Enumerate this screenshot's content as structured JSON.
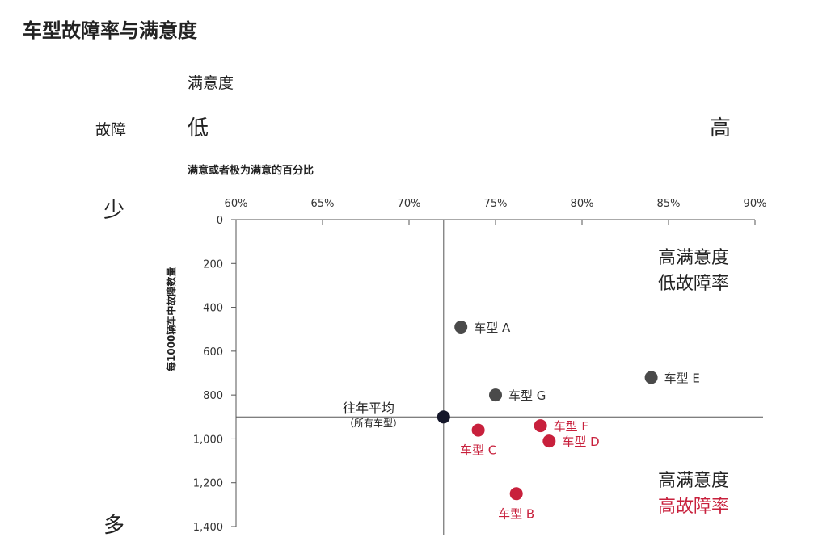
{
  "title": "车型故障率与满意度",
  "sat_header": "满意度",
  "failure_header": "故障",
  "low_label": "低",
  "high_label": "高",
  "few_label": "少",
  "many_label": "多",
  "quadrant_top": {
    "line1": "高满意度",
    "line2": "低故障率"
  },
  "quadrant_bottom": {
    "line1": "高满意度",
    "line2": "高故障率"
  },
  "average_label": {
    "line1": "往年平均",
    "line2": "（所有车型）"
  },
  "colors": {
    "gray": "#4a4a4a",
    "red": "#c8203c",
    "avg": "#15172a",
    "axis": "#555555"
  },
  "chart_data": {
    "type": "scatter",
    "xlabel": "满意或者极为满意的百分比",
    "ylabel": "每1000辆车中故障数量",
    "xlim": [
      60,
      90
    ],
    "ylim": [
      0,
      1400
    ],
    "y_inverted": true,
    "x_ticks": [
      "60%",
      "65%",
      "70%",
      "75%",
      "80%",
      "85%",
      "90%"
    ],
    "y_ticks": [
      "0",
      "200",
      "400",
      "600",
      "800",
      "1,000",
      "1,200",
      "1,400"
    ],
    "x_tick_values": [
      60,
      65,
      70,
      75,
      80,
      85,
      90
    ],
    "y_tick_values": [
      0,
      200,
      400,
      600,
      800,
      1000,
      1200,
      1400
    ],
    "average": {
      "x": 72,
      "y": 900
    },
    "points": [
      {
        "label": "车型 A",
        "x": 73,
        "y": 490,
        "color": "gray",
        "label_pos": "right"
      },
      {
        "label": "车型 E",
        "x": 84,
        "y": 720,
        "color": "gray",
        "label_pos": "right"
      },
      {
        "label": "车型 G",
        "x": 75,
        "y": 800,
        "color": "gray",
        "label_pos": "right"
      },
      {
        "label": "车型 F",
        "x": 77.6,
        "y": 940,
        "color": "red",
        "label_pos": "right"
      },
      {
        "label": "车型 C",
        "x": 74,
        "y": 960,
        "color": "red",
        "label_pos": "below"
      },
      {
        "label": "车型 D",
        "x": 78.1,
        "y": 1010,
        "color": "red",
        "label_pos": "right"
      },
      {
        "label": "车型 B",
        "x": 76.2,
        "y": 1250,
        "color": "red",
        "label_pos": "below"
      }
    ]
  }
}
